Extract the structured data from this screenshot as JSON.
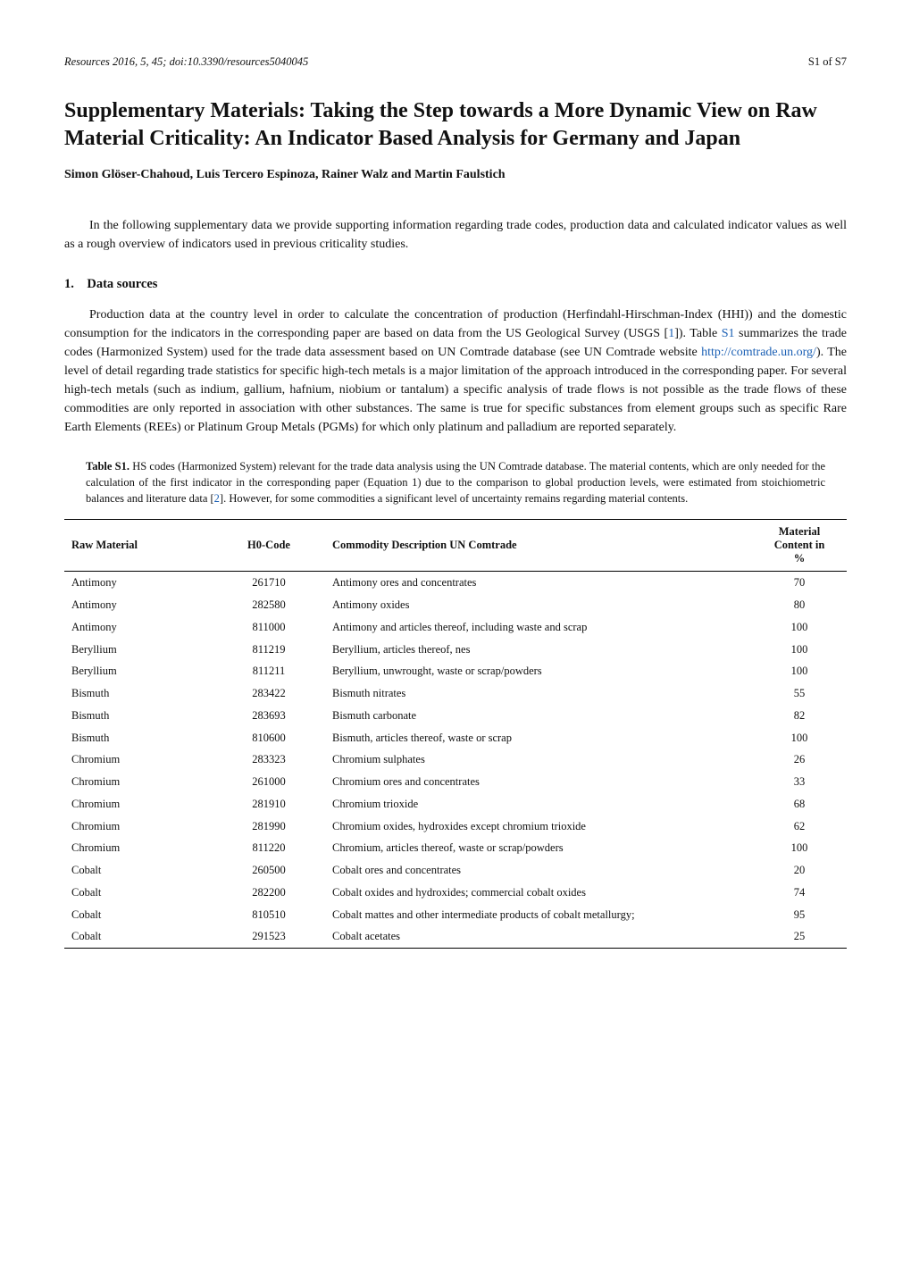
{
  "runningHead": {
    "left": "Resources 2016, 5, 45; doi:10.3390/resources5040045",
    "leftItalicPart": "Resources",
    "leftRest": " 2016, 5, 45; doi:10.3390/resources5040045",
    "right": "S1 of S7"
  },
  "title": "Supplementary Materials: Taking the Step towards a More Dynamic View on Raw Material Criticality: An Indicator Based Analysis for Germany and Japan",
  "authors": "Simon Glöser-Chahoud, Luis Tercero Espinoza, Rainer Walz and Martin Faulstich",
  "intro": "In the following supplementary data we provide supporting information regarding trade codes, production data and calculated indicator values as well as a rough overview of indicators used in previous criticality studies.",
  "section1": {
    "heading": "1. Data sources",
    "para_pre": "Production data at the country level in order to calculate the concentration of production (Herfindahl-Hirschman-Index (HHI)) and the domestic consumption for the indicators in the corresponding paper are based on data from the US Geological Survey (USGS [",
    "ref1": "1",
    "para_mid1": "]). Table ",
    "tableRef": "S1",
    "para_mid2": " summarizes the trade codes (Harmonized System) used for the trade data assessment based on UN Comtrade database (see UN Comtrade website ",
    "url": "http://comtrade.un.org/",
    "para_post": "). The level of detail regarding trade statistics for specific high-tech metals is a major limitation of the approach introduced in the corresponding paper. For several high-tech metals (such as indium, gallium, hafnium, niobium or tantalum) a specific analysis of trade flows is not possible as the trade flows of these commodities are only reported in association with other substances. The same is true for specific substances from element groups such as specific Rare Earth Elements (REEs) or Platinum Group Metals (PGMs) for which only platinum and palladium are reported separately."
  },
  "tableCaption": {
    "label": "Table S1.",
    "text_pre": " HS codes (Harmonized System) relevant for the trade data analysis using the UN Comtrade database. The material contents, which are only needed for the calculation of the first indicator in the corresponding paper (Equation 1) due to the comparison to global production levels, were estimated from stoichiometric balances and literature data [",
    "ref2": "2",
    "text_post": "]. However, for some commodities a significant level of uncertainty remains regarding material contents."
  },
  "table": {
    "columns": {
      "rawMaterial": "Raw Material",
      "h0": "H0-Code",
      "desc": "Commodity Description UN Comtrade",
      "mc_line1": "Material",
      "mc_line2": "Content in",
      "mc_line3": "%"
    },
    "rows": [
      {
        "m": "Antimony",
        "c": "261710",
        "d": "Antimony ores and concentrates",
        "p": "70"
      },
      {
        "m": "Antimony",
        "c": "282580",
        "d": "Antimony oxides",
        "p": "80"
      },
      {
        "m": "Antimony",
        "c": "811000",
        "d": "Antimony and articles thereof, including waste and scrap",
        "p": "100"
      },
      {
        "m": "Beryllium",
        "c": "811219",
        "d": "Beryllium, articles thereof, nes",
        "p": "100"
      },
      {
        "m": "Beryllium",
        "c": "811211",
        "d": "Beryllium, unwrought, waste or scrap/powders",
        "p": "100"
      },
      {
        "m": "Bismuth",
        "c": "283422",
        "d": "Bismuth nitrates",
        "p": "55"
      },
      {
        "m": "Bismuth",
        "c": "283693",
        "d": "Bismuth carbonate",
        "p": "82"
      },
      {
        "m": "Bismuth",
        "c": "810600",
        "d": "Bismuth, articles thereof, waste or scrap",
        "p": "100"
      },
      {
        "m": "Chromium",
        "c": "283323",
        "d": "Chromium sulphates",
        "p": "26"
      },
      {
        "m": "Chromium",
        "c": "261000",
        "d": "Chromium ores and concentrates",
        "p": "33"
      },
      {
        "m": "Chromium",
        "c": "281910",
        "d": "Chromium trioxide",
        "p": "68"
      },
      {
        "m": "Chromium",
        "c": "281990",
        "d": "Chromium oxides, hydroxides except chromium trioxide",
        "p": "62"
      },
      {
        "m": "Chromium",
        "c": "811220",
        "d": "Chromium, articles thereof, waste or scrap/powders",
        "p": "100"
      },
      {
        "m": "Cobalt",
        "c": "260500",
        "d": "Cobalt ores and concentrates",
        "p": "20"
      },
      {
        "m": "Cobalt",
        "c": "282200",
        "d": "Cobalt oxides and hydroxides; commercial cobalt oxides",
        "p": "74"
      },
      {
        "m": "Cobalt",
        "c": "810510",
        "d": "Cobalt mattes and other intermediate products of cobalt metallurgy;",
        "p": "95"
      },
      {
        "m": "Cobalt",
        "c": "291523",
        "d": "Cobalt acetates",
        "p": "25"
      }
    ]
  }
}
